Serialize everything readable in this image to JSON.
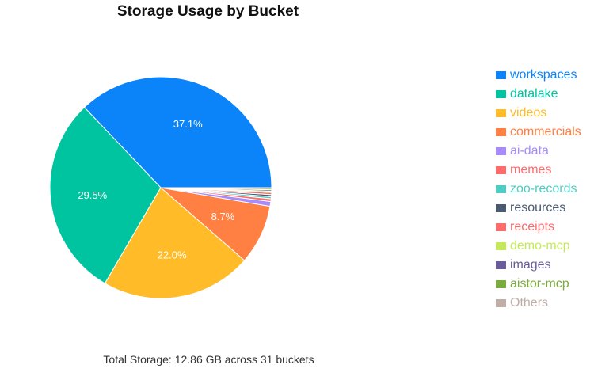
{
  "chart_data": {
    "type": "pie",
    "title": "Storage Usage by Bucket",
    "slices": [
      {
        "label": "workspaces",
        "value": 37.1,
        "color": "#0b84fa"
      },
      {
        "label": "datalake",
        "value": 29.5,
        "color": "#00c49f"
      },
      {
        "label": "videos",
        "value": 22.0,
        "color": "#ffbb28"
      },
      {
        "label": "commercials",
        "value": 8.7,
        "color": "#ff8042"
      },
      {
        "label": "ai-data",
        "value": 0.7,
        "color": "#a78bfa"
      },
      {
        "label": "memes",
        "value": 0.4,
        "color": "#ff6b6b"
      },
      {
        "label": "zoo-records",
        "value": 0.3,
        "color": "#4ecdc4"
      },
      {
        "label": "resources",
        "value": 0.3,
        "color": "#4a5a70"
      },
      {
        "label": "receipts",
        "value": 0.3,
        "color": "#ff6b6b"
      },
      {
        "label": "demo-mcp",
        "value": 0.2,
        "color": "#c4e859"
      },
      {
        "label": "images",
        "value": 0.2,
        "color": "#6a5b9a"
      },
      {
        "label": "aistor-mcp",
        "value": 0.2,
        "color": "#7bab3c"
      },
      {
        "label": "Others",
        "value": 0.1,
        "color": "#c0ada6"
      }
    ],
    "data_labels": [
      "37.1%",
      "29.5%",
      "22.0%",
      "8.7%"
    ],
    "legend_position": "right"
  },
  "summary": "Total Storage: 12.86 GB across 31 buckets"
}
